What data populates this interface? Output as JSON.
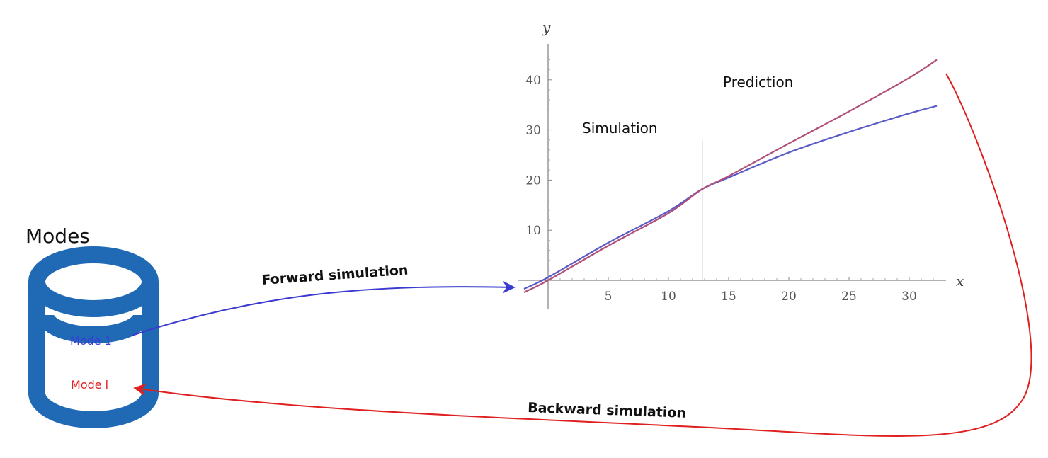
{
  "database": {
    "title": "Modes",
    "items": [
      {
        "label": "Mode 1",
        "color": "#3b3bd6"
      },
      {
        "label": "Mode i",
        "color": "#e02020"
      }
    ],
    "color": "#1f69b5"
  },
  "arrows": {
    "forward": {
      "label": "Forward simulation",
      "color": "#3a3ad0"
    },
    "backward": {
      "label": "Backward simulation",
      "color": "#e02020"
    }
  },
  "chart_data": {
    "type": "line",
    "xlabel": "x",
    "ylabel": "y",
    "xlim": [
      -2,
      34
    ],
    "ylim": [
      -3,
      48
    ],
    "xticks": [
      5,
      10,
      15,
      20,
      25,
      30
    ],
    "yticks": [
      10,
      20,
      30,
      40
    ],
    "series": [
      {
        "color": "#5a5ac8",
        "x": [
          -2,
          0,
          5,
          10,
          12.8,
          15,
          20,
          25,
          30,
          32.3
        ],
        "y": [
          -1.7,
          0.6,
          7.5,
          13.8,
          18.2,
          20.5,
          25.5,
          29.6,
          33.3,
          34.8
        ]
      },
      {
        "color": "#b0507a",
        "x": [
          -2,
          0,
          5,
          10,
          12.8,
          15,
          20,
          25,
          30,
          32.3
        ],
        "y": [
          -2.4,
          0.0,
          6.9,
          13.4,
          18.2,
          20.8,
          27.3,
          33.7,
          40.4,
          44.0
        ]
      }
    ],
    "divider_x": 12.8,
    "annotations": [
      {
        "text": "Simulation"
      },
      {
        "text": "Prediction"
      }
    ],
    "grid": false
  }
}
